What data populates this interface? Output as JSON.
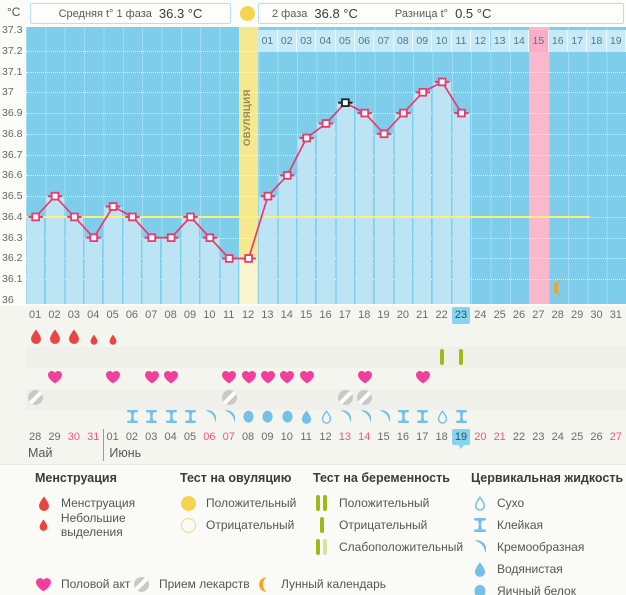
{
  "header": {
    "unit": "°C",
    "avg_phase1_label": "Средняя t° 1 фаза",
    "avg_phase1_value": "36.3 °C",
    "phase2_label": "2 фаза",
    "phase2_value": "36.8 °C",
    "diff_label": "Разница t°",
    "diff_value": "0.5 °C"
  },
  "chart_data": {
    "type": "line",
    "title": "График базальной температуры",
    "ylabel": "°C",
    "ylim": [
      36.0,
      37.3
    ],
    "y_ticks": [
      "37.3",
      "37.2",
      "37.1",
      "37",
      "36.9",
      "36.8",
      "36.7",
      "36.6",
      "36.5",
      "36.4",
      "36.3",
      "36.2",
      "36.1",
      "36"
    ],
    "coverline": 36.4,
    "cycle_days": [
      "01",
      "02",
      "03",
      "04",
      "05",
      "06",
      "07",
      "08",
      "09",
      "10",
      "11",
      "12",
      "13",
      "14",
      "15",
      "16",
      "17",
      "18",
      "19",
      "20",
      "21",
      "22",
      "23",
      "24",
      "25",
      "26",
      "27",
      "28",
      "29",
      "30",
      "31"
    ],
    "temps": [
      36.4,
      36.5,
      36.4,
      36.3,
      36.45,
      36.4,
      36.3,
      36.3,
      36.4,
      36.3,
      36.2,
      36.2,
      36.5,
      36.6,
      36.78,
      36.85,
      36.95,
      36.9,
      36.8,
      36.9,
      37.0,
      37.05,
      36.9,
      null,
      null,
      null,
      null,
      null,
      null,
      null,
      null
    ],
    "outlier_day": 17,
    "ovulation_day": 12,
    "ovulation_label": "ОВУЛЯЦИЯ",
    "expected_period_day": 27,
    "today_day": 23,
    "moon_day": 28,
    "dpo_start_day": 13,
    "dpo_labels": [
      "01",
      "02",
      "03",
      "04",
      "05",
      "06",
      "07",
      "08",
      "09",
      "10",
      "11",
      "12",
      "13",
      "14",
      "15",
      "16",
      "17",
      "18",
      "19"
    ],
    "dpo_highlighted": "15",
    "grid": true,
    "colors": {
      "plot_bg": "#7ecdea",
      "bar": "#bce4f5",
      "ovulation_column": "#f5e88e",
      "ovulation_bar": "#fbf5cd",
      "period_column": "#f9b8cc",
      "dpo_cell": "#c6eaf8",
      "dpo_cell_highlight": "#f8aec6",
      "line": "#e73a6e",
      "outlier": "#222222",
      "coverline": "#f9f17c",
      "today_highlight": "#85d4f0",
      "menstruation": "#e84545",
      "intercourse": "#f23f9b",
      "medication": "#c9c9c9",
      "pregnancy_test": "#9cbb17",
      "pregnancy_test_faint": "#d6e3a0",
      "cervical": "#74c0e8",
      "ovulation_test": "#f6d351",
      "moon": "#f6a41f",
      "weekend_date": "#f4547f"
    }
  },
  "rows": {
    "menstruation_large_days": [
      1,
      2,
      3
    ],
    "menstruation_small_days": [
      4,
      5
    ],
    "pregnancy_test_negative_days": [
      22,
      23
    ],
    "intercourse_days": [
      2,
      5,
      7,
      8,
      11,
      12,
      13,
      14,
      15,
      18,
      21
    ],
    "medication_days": [
      1,
      11,
      17,
      18
    ],
    "cervical_by_day": {
      "6": "sticky",
      "7": "sticky",
      "8": "sticky",
      "9": "sticky",
      "10": "creamy",
      "11": "creamy",
      "12": "eggwhite",
      "13": "eggwhite",
      "14": "eggwhite",
      "15": "watery",
      "16": "dry",
      "17": "creamy",
      "18": "creamy",
      "19": "creamy",
      "20": "sticky",
      "21": "sticky",
      "22": "dry",
      "23": "sticky"
    },
    "dates": [
      {
        "label": "28",
        "red": false,
        "today": false
      },
      {
        "label": "29",
        "red": false,
        "today": false
      },
      {
        "label": "30",
        "red": true,
        "today": false
      },
      {
        "label": "31",
        "red": true,
        "today": false
      },
      {
        "label": "01",
        "red": false,
        "today": false
      },
      {
        "label": "02",
        "red": false,
        "today": false
      },
      {
        "label": "03",
        "red": false,
        "today": false
      },
      {
        "label": "04",
        "red": false,
        "today": false
      },
      {
        "label": "05",
        "red": false,
        "today": false
      },
      {
        "label": "06",
        "red": true,
        "today": false
      },
      {
        "label": "07",
        "red": true,
        "today": false
      },
      {
        "label": "08",
        "red": false,
        "today": false
      },
      {
        "label": "09",
        "red": false,
        "today": false
      },
      {
        "label": "10",
        "red": false,
        "today": false
      },
      {
        "label": "11",
        "red": false,
        "today": false
      },
      {
        "label": "12",
        "red": false,
        "today": false
      },
      {
        "label": "13",
        "red": true,
        "today": false
      },
      {
        "label": "14",
        "red": true,
        "today": false
      },
      {
        "label": "15",
        "red": false,
        "today": false
      },
      {
        "label": "16",
        "red": false,
        "today": false
      },
      {
        "label": "17",
        "red": false,
        "today": false
      },
      {
        "label": "18",
        "red": false,
        "today": false
      },
      {
        "label": "19",
        "red": false,
        "today": true
      },
      {
        "label": "20",
        "red": true,
        "today": false
      },
      {
        "label": "21",
        "red": true,
        "today": false
      },
      {
        "label": "22",
        "red": false,
        "today": false
      },
      {
        "label": "23",
        "red": false,
        "today": false
      },
      {
        "label": "24",
        "red": false,
        "today": false
      },
      {
        "label": "25",
        "red": false,
        "today": false
      },
      {
        "label": "26",
        "red": false,
        "today": false
      },
      {
        "label": "27",
        "red": true,
        "today": false
      }
    ],
    "months": [
      {
        "label": "Май"
      },
      {
        "label": "Июнь"
      }
    ],
    "month_divider_after_day": 4
  },
  "legend": {
    "groups": [
      {
        "title": "Менструация",
        "items": [
          {
            "icon": "drop-large",
            "label": "Менструация"
          },
          {
            "icon": "drop-small",
            "label": "Небольшие выделения"
          }
        ]
      },
      {
        "title": "Тест на овуляцию",
        "items": [
          {
            "icon": "circle-filled",
            "label": "Положительный"
          },
          {
            "icon": "circle-outline",
            "label": "Отрицательный"
          }
        ]
      },
      {
        "title": "Тест на беременность",
        "items": [
          {
            "icon": "bars-positive",
            "label": "Положительный"
          },
          {
            "icon": "bar-negative",
            "label": "Отрицательный"
          },
          {
            "icon": "bars-weak",
            "label": "Слабоположительный"
          }
        ]
      },
      {
        "title": "Цервикальная жидкость",
        "items": [
          {
            "icon": "dry",
            "label": "Сухо"
          },
          {
            "icon": "sticky",
            "label": "Клейкая"
          },
          {
            "icon": "creamy",
            "label": "Кремообразная"
          },
          {
            "icon": "watery",
            "label": "Водянистая"
          },
          {
            "icon": "eggwhite",
            "label": "Яичный белок"
          }
        ]
      }
    ],
    "misc": [
      {
        "icon": "heart",
        "label": "Половой акт"
      },
      {
        "icon": "pill",
        "label": "Прием лекарств"
      },
      {
        "icon": "moon",
        "label": "Лунный календарь"
      }
    ]
  }
}
